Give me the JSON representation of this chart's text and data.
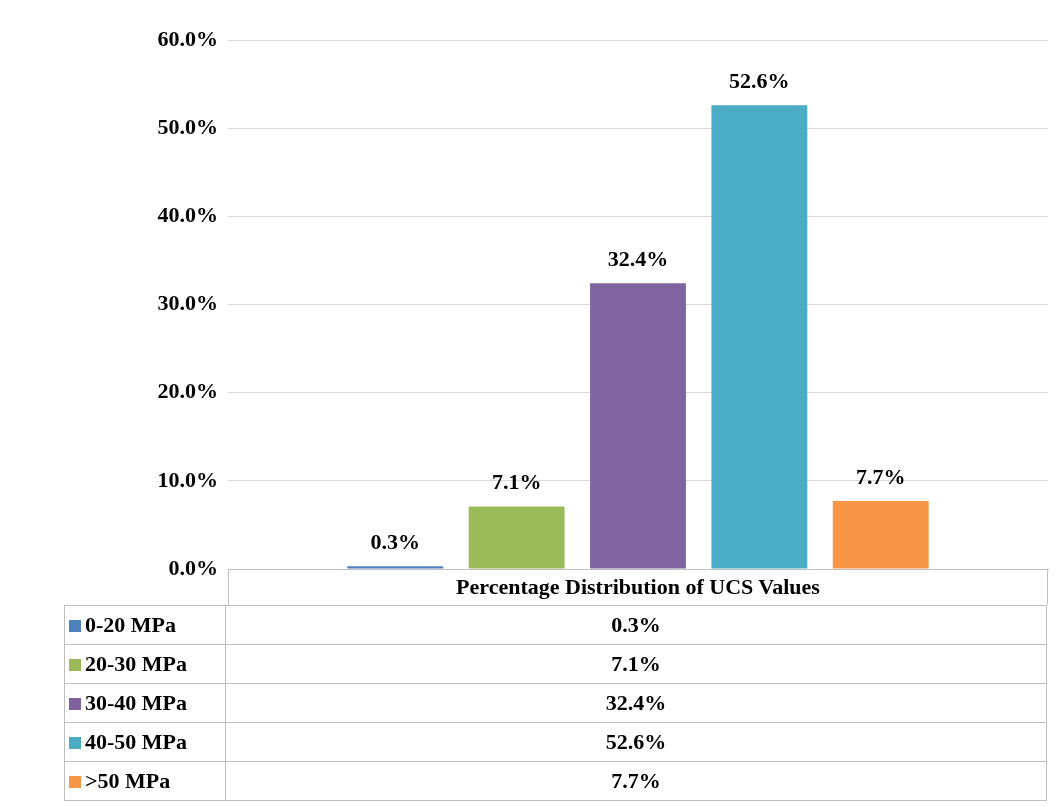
{
  "chart_data": {
    "type": "bar",
    "categories": [
      "Percentage Distribution of UCS Values"
    ],
    "series": [
      {
        "name": "0-20 MPa",
        "color": "#4f81bd",
        "values": [
          0.3
        ],
        "value_labels": [
          "0.3%"
        ]
      },
      {
        "name": "20-30 MPa",
        "color": "#9bbb59",
        "values": [
          7.1
        ],
        "value_labels": [
          "7.1%"
        ]
      },
      {
        "name": "30-40 MPa",
        "color": "#8064a2",
        "values": [
          32.4
        ],
        "value_labels": [
          "32.4%"
        ]
      },
      {
        "name": "40-50 MPa",
        "color": "#4bacc6",
        "values": [
          52.6
        ],
        "value_labels": [
          "52.6%"
        ]
      },
      {
        "name": ">50 MPa",
        "color": "#f79646",
        "values": [
          7.7
        ],
        "value_labels": [
          "7.7%"
        ]
      }
    ],
    "ylim": [
      0,
      60
    ],
    "yticks": [
      {
        "value": 0,
        "label": "0.0%"
      },
      {
        "value": 10,
        "label": "10.0%"
      },
      {
        "value": 20,
        "label": "20.0%"
      },
      {
        "value": 30,
        "label": "30.0%"
      },
      {
        "value": 40,
        "label": "40.0%"
      },
      {
        "value": 50,
        "label": "50.0%"
      },
      {
        "value": 60,
        "label": "60.0%"
      }
    ],
    "grid": "y",
    "legend": "bottom"
  }
}
